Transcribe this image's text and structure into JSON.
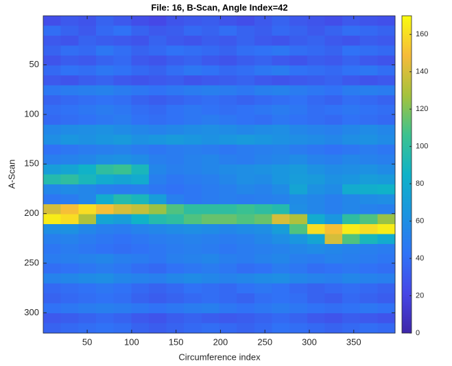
{
  "chart_data": {
    "type": "heatmap",
    "title": "File: 16, B-Scan, Angle Index=42",
    "x_label": "Circumference index",
    "y_label": "A-Scan",
    "xlim": [
      0.5,
      396.5
    ],
    "ylim": [
      0.5,
      320.5
    ],
    "y_reversed": true,
    "xticks": [
      50,
      100,
      150,
      200,
      250,
      300,
      350
    ],
    "yticks": [
      50,
      100,
      150,
      200,
      250,
      300
    ],
    "clim": [
      0,
      170
    ],
    "colorbar_ticks": [
      0,
      20,
      40,
      60,
      80,
      100,
      120,
      140,
      160
    ],
    "colormap": [
      "#3e26a8",
      "#4646e6",
      "#2f73f6",
      "#1b94e0",
      "#10b2c8",
      "#3cc28f",
      "#a5c23c",
      "#f6bb3a",
      "#f9fb0e"
    ],
    "values": [
      [
        25,
        30,
        28,
        35,
        30,
        25,
        22,
        28,
        30,
        32,
        28,
        25,
        30,
        35,
        30,
        28,
        25,
        30,
        28,
        26
      ],
      [
        40,
        35,
        30,
        38,
        42,
        35,
        30,
        32,
        38,
        35,
        40,
        35,
        32,
        38,
        35,
        30,
        35,
        40,
        38,
        35
      ],
      [
        30,
        28,
        35,
        32,
        30,
        28,
        35,
        30,
        28,
        32,
        30,
        35,
        30,
        28,
        32,
        35,
        30,
        28,
        32,
        30
      ],
      [
        35,
        40,
        38,
        45,
        40,
        35,
        38,
        42,
        40,
        38,
        35,
        40,
        42,
        45,
        40,
        38,
        35,
        42,
        40,
        38
      ],
      [
        28,
        32,
        30,
        35,
        38,
        30,
        28,
        32,
        35,
        30,
        28,
        32,
        35,
        30,
        28,
        32,
        30,
        35,
        30,
        28
      ],
      [
        38,
        42,
        40,
        45,
        42,
        38,
        35,
        40,
        45,
        42,
        38,
        40,
        45,
        48,
        42,
        40,
        38,
        42,
        45,
        40
      ],
      [
        30,
        28,
        32,
        35,
        30,
        28,
        30,
        32,
        28,
        30,
        32,
        35,
        30,
        28,
        30,
        32,
        35,
        30,
        28,
        30
      ],
      [
        45,
        48,
        50,
        52,
        48,
        45,
        42,
        45,
        48,
        50,
        48,
        45,
        50,
        52,
        48,
        45,
        42,
        48,
        50,
        48
      ],
      [
        35,
        38,
        40,
        42,
        40,
        35,
        32,
        35,
        38,
        40,
        38,
        35,
        38,
        40,
        42,
        38,
        35,
        40,
        38,
        35
      ],
      [
        40,
        42,
        45,
        48,
        45,
        40,
        38,
        42,
        45,
        42,
        40,
        42,
        45,
        48,
        45,
        40,
        42,
        45,
        42,
        40
      ],
      [
        38,
        40,
        42,
        45,
        48,
        42,
        40,
        42,
        45,
        48,
        45,
        42,
        40,
        45,
        42,
        40,
        38,
        42,
        40,
        38
      ],
      [
        55,
        58,
        60,
        62,
        58,
        55,
        52,
        55,
        58,
        60,
        58,
        55,
        58,
        60,
        55,
        52,
        50,
        55,
        58,
        55
      ],
      [
        60,
        65,
        62,
        65,
        68,
        62,
        65,
        68,
        65,
        62,
        65,
        68,
        65,
        62,
        60,
        58,
        55,
        60,
        62,
        58
      ],
      [
        42,
        45,
        48,
        50,
        52,
        48,
        45,
        48,
        50,
        48,
        45,
        48,
        50,
        52,
        48,
        45,
        42,
        45,
        48,
        45
      ],
      [
        50,
        52,
        55,
        60,
        62,
        58,
        50,
        48,
        52,
        55,
        50,
        48,
        52,
        55,
        58,
        52,
        50,
        55,
        52,
        50
      ],
      [
        70,
        75,
        85,
        100,
        105,
        90,
        55,
        50,
        52,
        55,
        58,
        60,
        62,
        65,
        68,
        62,
        58,
        60,
        62,
        58
      ],
      [
        95,
        100,
        90,
        80,
        75,
        80,
        50,
        45,
        48,
        50,
        55,
        60,
        58,
        65,
        70,
        68,
        62,
        65,
        70,
        68
      ],
      [
        55,
        58,
        55,
        50,
        48,
        50,
        45,
        42,
        45,
        48,
        50,
        55,
        52,
        58,
        75,
        62,
        58,
        80,
        82,
        85
      ],
      [
        45,
        48,
        55,
        80,
        95,
        90,
        70,
        50,
        45,
        48,
        50,
        48,
        50,
        52,
        58,
        55,
        50,
        55,
        58,
        60
      ],
      [
        140,
        150,
        160,
        150,
        140,
        135,
        125,
        110,
        100,
        100,
        100,
        105,
        100,
        95,
        60,
        55,
        50,
        55,
        52,
        50
      ],
      [
        165,
        160,
        130,
        75,
        70,
        85,
        95,
        100,
        110,
        115,
        115,
        110,
        115,
        140,
        130,
        80,
        65,
        100,
        110,
        125
      ],
      [
        60,
        62,
        55,
        50,
        48,
        52,
        55,
        58,
        60,
        58,
        55,
        58,
        60,
        70,
        110,
        160,
        150,
        165,
        160,
        165
      ],
      [
        50,
        52,
        48,
        45,
        42,
        45,
        48,
        50,
        52,
        50,
        48,
        50,
        55,
        60,
        65,
        75,
        140,
        110,
        90,
        80
      ],
      [
        45,
        48,
        45,
        42,
        40,
        42,
        45,
        48,
        50,
        48,
        45,
        48,
        50,
        52,
        55,
        58,
        55,
        52,
        50,
        48
      ],
      [
        48,
        50,
        52,
        55,
        50,
        48,
        45,
        50,
        52,
        55,
        50,
        48,
        52,
        55,
        50,
        48,
        52,
        50,
        48,
        45
      ],
      [
        40,
        42,
        45,
        48,
        45,
        40,
        38,
        42,
        45,
        48,
        45,
        40,
        42,
        48,
        45,
        40,
        42,
        45,
        42,
        40
      ],
      [
        52,
        55,
        58,
        60,
        55,
        52,
        50,
        55,
        58,
        55,
        52,
        55,
        58,
        60,
        55,
        52,
        50,
        55,
        52,
        50
      ],
      [
        38,
        40,
        42,
        45,
        42,
        38,
        35,
        38,
        42,
        40,
        38,
        42,
        45,
        42,
        38,
        35,
        38,
        40,
        38,
        35
      ],
      [
        35,
        38,
        40,
        42,
        40,
        35,
        32,
        35,
        38,
        40,
        38,
        35,
        40,
        42,
        40,
        35,
        32,
        38,
        35,
        32
      ],
      [
        42,
        45,
        48,
        50,
        48,
        45,
        42,
        45,
        48,
        50,
        45,
        42,
        45,
        48,
        45,
        42,
        40,
        42,
        45,
        42
      ],
      [
        30,
        32,
        35,
        38,
        35,
        30,
        28,
        32,
        35,
        32,
        30,
        32,
        35,
        38,
        35,
        30,
        28,
        32,
        30,
        28
      ],
      [
        35,
        38,
        40,
        42,
        40,
        35,
        32,
        35,
        38,
        40,
        38,
        35,
        38,
        42,
        40,
        38,
        35,
        38,
        40,
        38
      ]
    ]
  }
}
